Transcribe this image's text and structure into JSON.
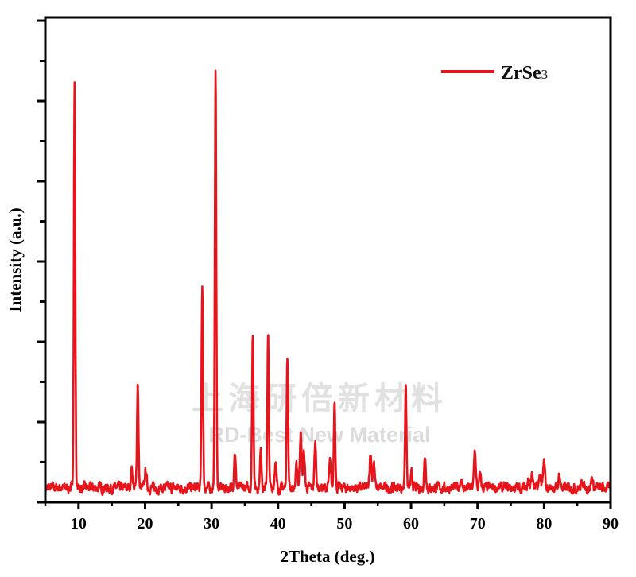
{
  "chart_data": {
    "type": "line",
    "title": "",
    "xlabel": "2Theta (deg.)",
    "ylabel": "Intensity (a.u.)",
    "xlim": [
      5,
      90
    ],
    "ylim": [
      0,
      6.04
    ],
    "xticks": [
      10,
      20,
      30,
      40,
      50,
      60,
      70,
      80,
      90
    ],
    "yticks_unlabeled": true,
    "grid": false,
    "legend": {
      "placement": "top-right",
      "entries": [
        {
          "label": "ZrSe",
          "subscript": "3",
          "color": "#e8141b"
        }
      ]
    },
    "series": [
      {
        "name": "ZrSe3",
        "color": "#e8141b",
        "baseline": 0.18,
        "peaks": [
          {
            "x": 9.4,
            "y": 5.22
          },
          {
            "x": 18.0,
            "y": 0.42
          },
          {
            "x": 18.9,
            "y": 1.5
          },
          {
            "x": 20.1,
            "y": 0.4
          },
          {
            "x": 28.6,
            "y": 2.71
          },
          {
            "x": 30.6,
            "y": 5.37
          },
          {
            "x": 33.5,
            "y": 0.63
          },
          {
            "x": 36.2,
            "y": 2.1
          },
          {
            "x": 37.4,
            "y": 0.63
          },
          {
            "x": 38.5,
            "y": 2.09
          },
          {
            "x": 39.6,
            "y": 0.49
          },
          {
            "x": 41.4,
            "y": 1.86
          },
          {
            "x": 42.8,
            "y": 0.45
          },
          {
            "x": 43.4,
            "y": 0.88
          },
          {
            "x": 43.9,
            "y": 0.6
          },
          {
            "x": 45.6,
            "y": 0.73
          },
          {
            "x": 47.8,
            "y": 0.5
          },
          {
            "x": 48.5,
            "y": 1.29
          },
          {
            "x": 53.9,
            "y": 0.63
          },
          {
            "x": 54.4,
            "y": 0.5
          },
          {
            "x": 59.2,
            "y": 1.45
          },
          {
            "x": 60.1,
            "y": 0.35
          },
          {
            "x": 62.1,
            "y": 0.58
          },
          {
            "x": 67.5,
            "y": 0.3
          },
          {
            "x": 69.6,
            "y": 0.65
          },
          {
            "x": 70.4,
            "y": 0.35
          },
          {
            "x": 77.6,
            "y": 0.3
          },
          {
            "x": 78.2,
            "y": 0.35
          },
          {
            "x": 79.4,
            "y": 0.35
          },
          {
            "x": 80.0,
            "y": 0.5
          },
          {
            "x": 82.3,
            "y": 0.34
          },
          {
            "x": 85.8,
            "y": 0.28
          },
          {
            "x": 87.2,
            "y": 0.3
          }
        ]
      }
    ]
  },
  "watermark": {
    "line1": "上海研倍新材料",
    "line2": "RD-Best New Material"
  }
}
